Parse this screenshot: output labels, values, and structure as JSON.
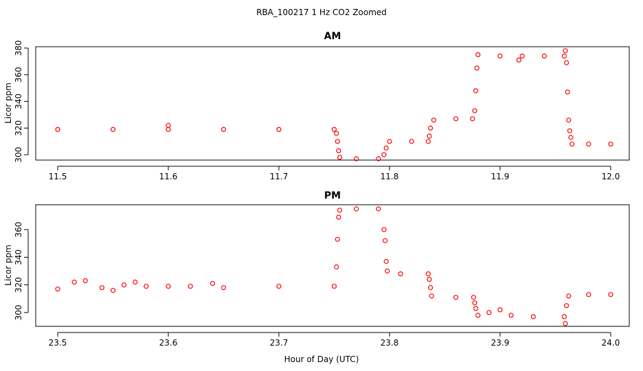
{
  "figure": {
    "title": "RBA_100217  1 Hz CO2 Zoomed",
    "xlabel": "Hour of Day (UTC)"
  },
  "chart_data": [
    {
      "type": "scatter",
      "title": "AM",
      "xlabel": "Hour of Day (UTC)",
      "ylabel": "Licor ppm",
      "xlim": [
        11.5,
        12.0
      ],
      "ylim": [
        296,
        381
      ],
      "x_ticks": [
        "11.5",
        "11.6",
        "11.7",
        "11.8",
        "11.9",
        "12.0"
      ],
      "y_ticks": [
        "300",
        "320",
        "340",
        "360",
        "380"
      ],
      "point_color": "#ff0000",
      "marker": "open-circle",
      "series": [
        {
          "points": [
            [
              11.5,
              319
            ],
            [
              11.55,
              319
            ],
            [
              11.6,
              319
            ],
            [
              11.6,
              322
            ],
            [
              11.65,
              319
            ],
            [
              11.7,
              319
            ],
            [
              11.75,
              319
            ],
            [
              11.752,
              316
            ],
            [
              11.753,
              310
            ],
            [
              11.754,
              303
            ],
            [
              11.755,
              298
            ],
            [
              11.77,
              297
            ],
            [
              11.79,
              297
            ],
            [
              11.795,
              300
            ],
            [
              11.797,
              305
            ],
            [
              11.8,
              310
            ],
            [
              11.82,
              310
            ],
            [
              11.835,
              310
            ],
            [
              11.836,
              314
            ],
            [
              11.837,
              320
            ],
            [
              11.84,
              326
            ],
            [
              11.86,
              327
            ],
            [
              11.875,
              327
            ],
            [
              11.877,
              333
            ],
            [
              11.878,
              348
            ],
            [
              11.879,
              365
            ],
            [
              11.88,
              375
            ],
            [
              11.9,
              374
            ],
            [
              11.917,
              371
            ],
            [
              11.92,
              374
            ],
            [
              11.94,
              374
            ],
            [
              11.958,
              374
            ],
            [
              11.959,
              378
            ],
            [
              11.96,
              369
            ],
            [
              11.961,
              347
            ],
            [
              11.962,
              326
            ],
            [
              11.963,
              318
            ],
            [
              11.964,
              313
            ],
            [
              11.965,
              308
            ],
            [
              11.98,
              308
            ],
            [
              12.0,
              308
            ]
          ]
        }
      ]
    },
    {
      "type": "scatter",
      "title": "PM",
      "xlabel": "Hour of Day (UTC)",
      "ylabel": "Licor ppm",
      "xlim": [
        23.5,
        24.0
      ],
      "ylim": [
        290,
        378
      ],
      "x_ticks": [
        "23.5",
        "23.6",
        "23.7",
        "23.8",
        "23.9",
        "24.0"
      ],
      "y_ticks": [
        "300",
        "320",
        "340",
        "360"
      ],
      "point_color": "#ff0000",
      "marker": "open-circle",
      "series": [
        {
          "points": [
            [
              23.5,
              317
            ],
            [
              23.515,
              322
            ],
            [
              23.525,
              323
            ],
            [
              23.54,
              318
            ],
            [
              23.55,
              316
            ],
            [
              23.56,
              320
            ],
            [
              23.57,
              322
            ],
            [
              23.58,
              319
            ],
            [
              23.6,
              319
            ],
            [
              23.62,
              319
            ],
            [
              23.64,
              321
            ],
            [
              23.65,
              318
            ],
            [
              23.7,
              319
            ],
            [
              23.75,
              319
            ],
            [
              23.752,
              333
            ],
            [
              23.753,
              353
            ],
            [
              23.754,
              369
            ],
            [
              23.755,
              374
            ],
            [
              23.77,
              375
            ],
            [
              23.79,
              375
            ],
            [
              23.795,
              360
            ],
            [
              23.796,
              352
            ],
            [
              23.797,
              337
            ],
            [
              23.798,
              330
            ],
            [
              23.81,
              328
            ],
            [
              23.835,
              328
            ],
            [
              23.836,
              324
            ],
            [
              23.837,
              318
            ],
            [
              23.838,
              312
            ],
            [
              23.86,
              311
            ],
            [
              23.876,
              311
            ],
            [
              23.877,
              307
            ],
            [
              23.878,
              303
            ],
            [
              23.88,
              298
            ],
            [
              23.89,
              300
            ],
            [
              23.9,
              302
            ],
            [
              23.91,
              298
            ],
            [
              23.93,
              297
            ],
            [
              23.958,
              297
            ],
            [
              23.959,
              292
            ],
            [
              23.96,
              305
            ],
            [
              23.962,
              312
            ],
            [
              23.98,
              313
            ],
            [
              24.0,
              313
            ]
          ]
        }
      ]
    }
  ]
}
